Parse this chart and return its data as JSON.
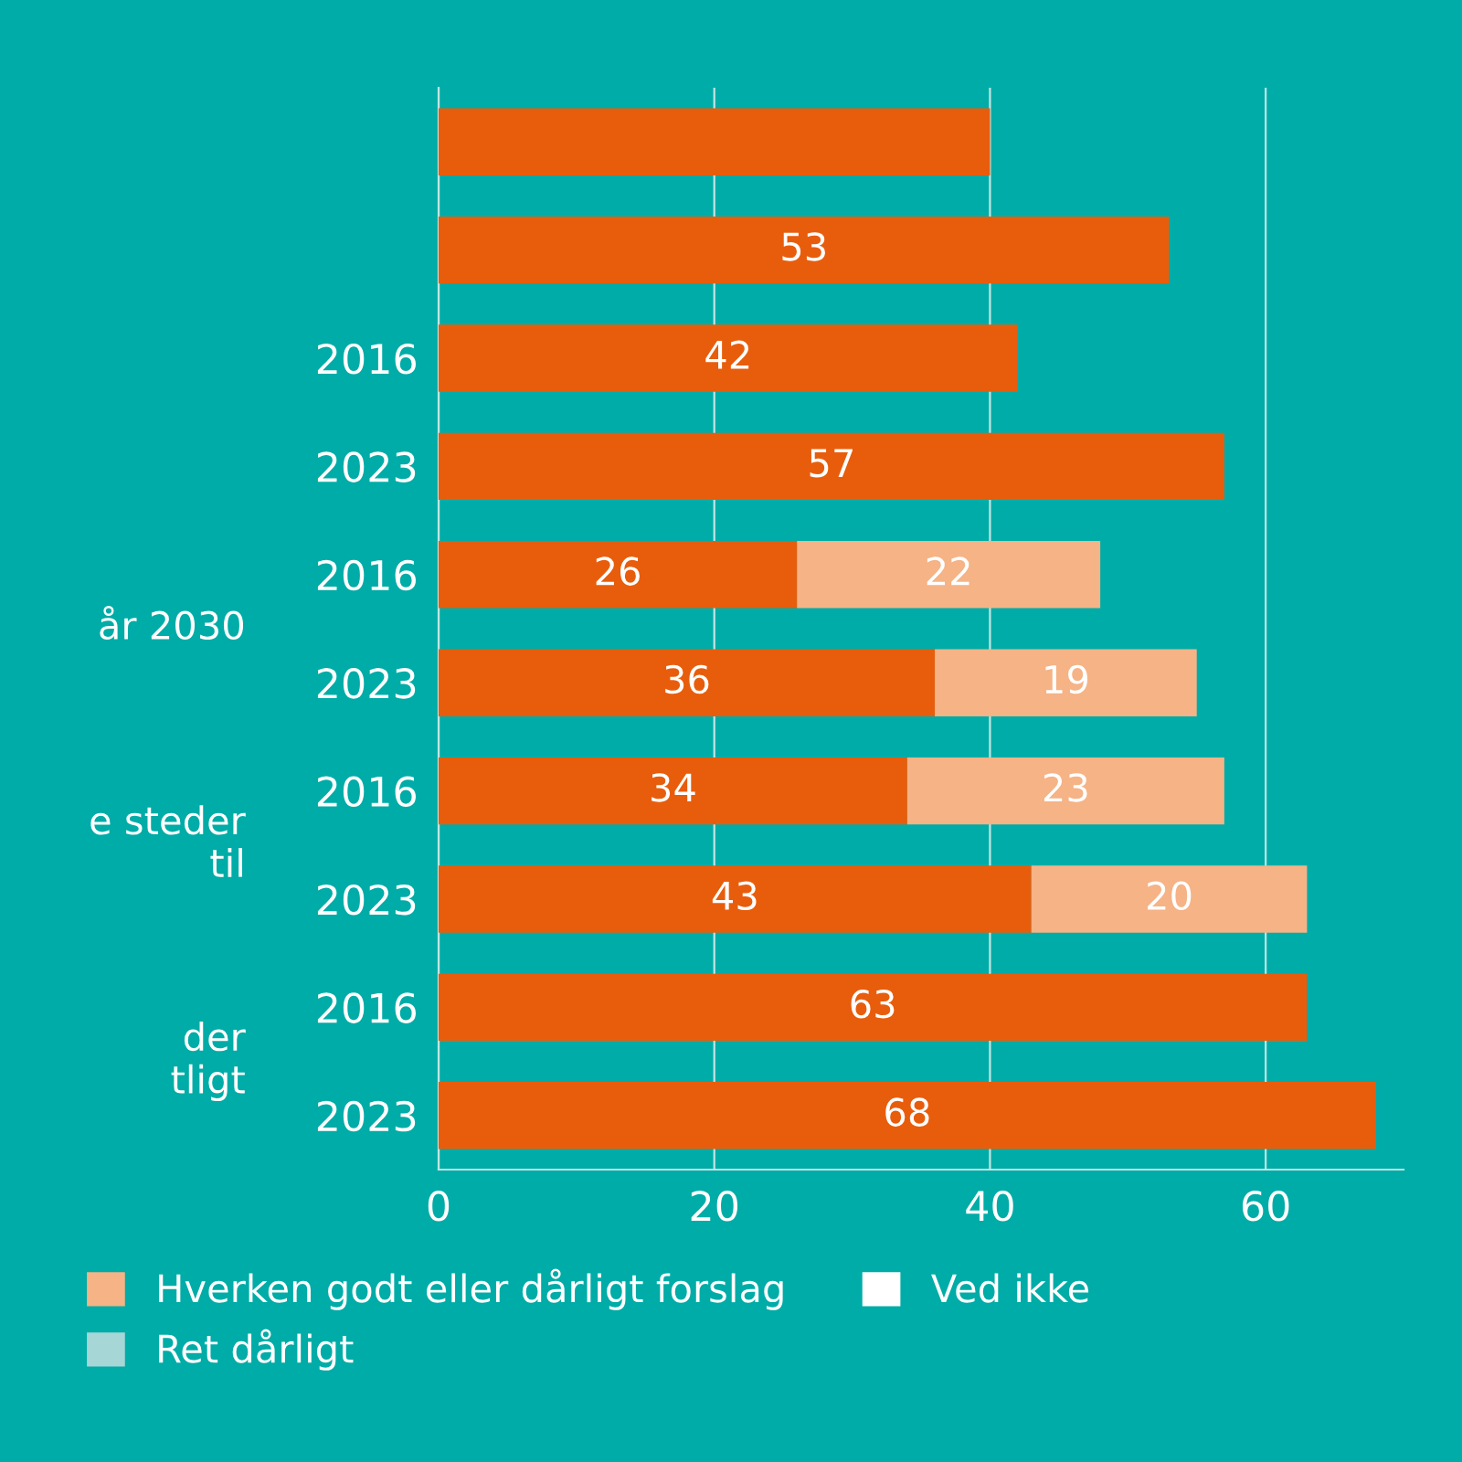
{
  "chart_data": {
    "type": "bar",
    "orientation": "horizontal",
    "stacked": true,
    "categories": [
      null,
      null,
      "2016",
      "2023",
      "2016",
      "2023",
      "2016",
      "2023",
      "2016",
      "2023"
    ],
    "series": [
      {
        "color": "#e85d0c",
        "values": [
          40,
          53,
          42,
          57,
          26,
          36,
          34,
          43,
          63,
          68
        ],
        "value_labels": [
          null,
          "53",
          "42",
          "57",
          "26",
          "36",
          "34",
          "43",
          "63",
          "68"
        ]
      },
      {
        "name": "Hverken godt eller dårligt forslag",
        "color": "#f5b386",
        "values": [
          null,
          null,
          null,
          null,
          22,
          19,
          23,
          20,
          null,
          null
        ],
        "value_labels": [
          null,
          null,
          null,
          null,
          "22",
          "19",
          "23",
          "20",
          null,
          null
        ]
      },
      {
        "name": "Ret dårligt",
        "color": "#a6d6d6",
        "values": [
          null,
          null,
          null,
          null,
          null,
          null,
          null,
          null,
          null,
          null
        ]
      },
      {
        "name": "Ved ikke",
        "color": "#ffffff",
        "values": [
          null,
          null,
          null,
          null,
          null,
          null,
          null,
          null,
          null,
          null
        ]
      }
    ],
    "annotations": [
      "år 2030",
      "e steder\ntil",
      "der\ntligt"
    ],
    "xlim": [
      0,
      70
    ],
    "xticks": [
      0,
      20,
      40,
      60
    ],
    "grid": "x",
    "legend": "bottom"
  }
}
